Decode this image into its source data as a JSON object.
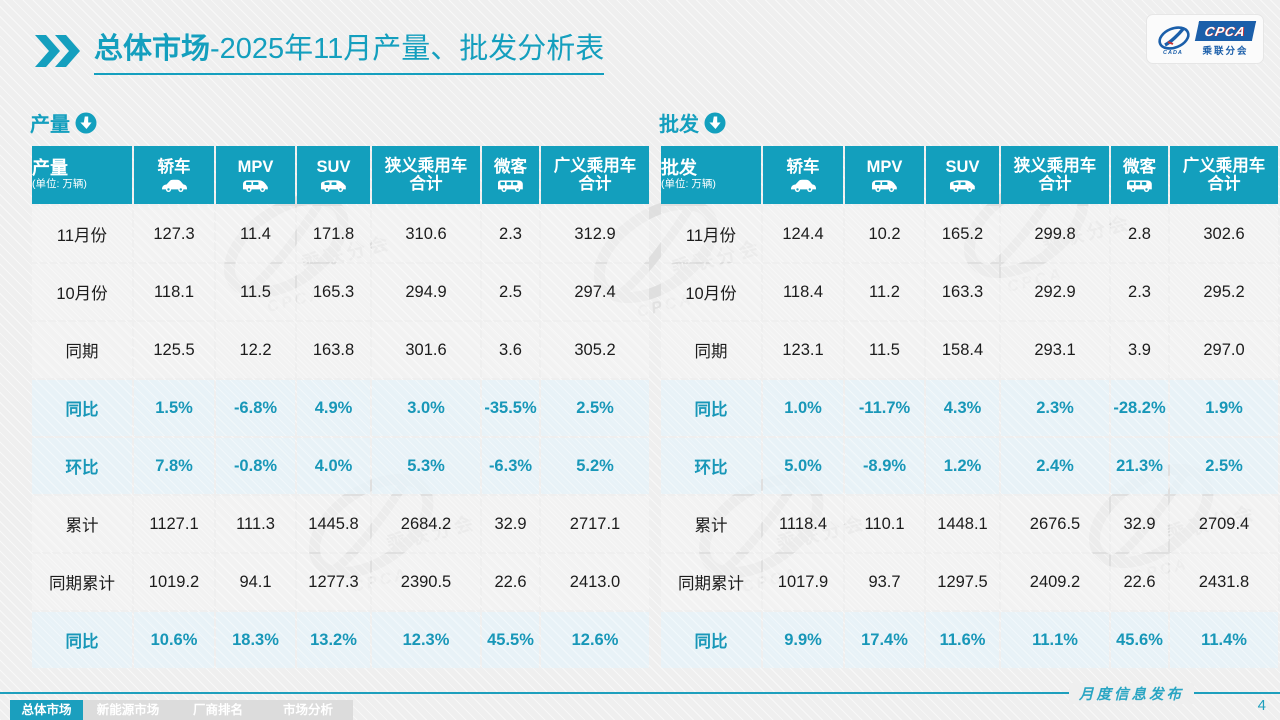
{
  "title": {
    "main": "总体市场",
    "rest": "-2025年11月产量、批发分析表"
  },
  "logo": {
    "acronym": "CPCA",
    "subtitle": "乘联分会"
  },
  "colors": {
    "accent": "#139FBD",
    "accent_text": "#1897B8",
    "highlight_row_bg": "#E9F3F7",
    "footer_tab_active": "#1B9FBE"
  },
  "tables": [
    {
      "section_label": "产量",
      "header": {
        "label": "产量",
        "unit": "(单位: 万辆)"
      },
      "columns": [
        {
          "label": "轿车",
          "icon": "sedan-icon"
        },
        {
          "label": "MPV",
          "icon": "mpv-icon"
        },
        {
          "label": "SUV",
          "icon": "suv-icon"
        },
        {
          "label": "狭义乘用车\n合计",
          "icon": null
        },
        {
          "label": "微客",
          "icon": "minibus-icon"
        },
        {
          "label": "广义乘用车\n合计",
          "icon": null
        }
      ],
      "rows": [
        {
          "label": "11月份",
          "type": "data",
          "values": [
            "127.3",
            "11.4",
            "171.8",
            "310.6",
            "2.3",
            "312.9"
          ]
        },
        {
          "label": "10月份",
          "type": "data",
          "values": [
            "118.1",
            "11.5",
            "165.3",
            "294.9",
            "2.5",
            "297.4"
          ]
        },
        {
          "label": "同期",
          "type": "data",
          "values": [
            "125.5",
            "12.2",
            "163.8",
            "301.6",
            "3.6",
            "305.2"
          ]
        },
        {
          "label": "同比",
          "type": "pct",
          "values": [
            "1.5%",
            "-6.8%",
            "4.9%",
            "3.0%",
            "-35.5%",
            "2.5%"
          ]
        },
        {
          "label": "环比",
          "type": "pct",
          "values": [
            "7.8%",
            "-0.8%",
            "4.0%",
            "5.3%",
            "-6.3%",
            "5.2%"
          ]
        },
        {
          "label": "累计",
          "type": "data",
          "values": [
            "1127.1",
            "111.3",
            "1445.8",
            "2684.2",
            "32.9",
            "2717.1"
          ]
        },
        {
          "label": "同期累计",
          "type": "data",
          "values": [
            "1019.2",
            "94.1",
            "1277.3",
            "2390.5",
            "22.6",
            "2413.0"
          ]
        },
        {
          "label": "同比",
          "type": "pct",
          "values": [
            "10.6%",
            "18.3%",
            "13.2%",
            "12.3%",
            "45.5%",
            "12.6%"
          ]
        }
      ]
    },
    {
      "section_label": "批发",
      "header": {
        "label": "批发",
        "unit": "(单位: 万辆)"
      },
      "columns": [
        {
          "label": "轿车",
          "icon": "sedan-icon"
        },
        {
          "label": "MPV",
          "icon": "mpv-icon"
        },
        {
          "label": "SUV",
          "icon": "suv-icon"
        },
        {
          "label": "狭义乘用车\n合计",
          "icon": null
        },
        {
          "label": "微客",
          "icon": "minibus-icon"
        },
        {
          "label": "广义乘用车\n合计",
          "icon": null
        }
      ],
      "rows": [
        {
          "label": "11月份",
          "type": "data",
          "values": [
            "124.4",
            "10.2",
            "165.2",
            "299.8",
            "2.8",
            "302.6"
          ]
        },
        {
          "label": "10月份",
          "type": "data",
          "values": [
            "118.4",
            "11.2",
            "163.3",
            "292.9",
            "2.3",
            "295.2"
          ]
        },
        {
          "label": "同期",
          "type": "data",
          "values": [
            "123.1",
            "11.5",
            "158.4",
            "293.1",
            "3.9",
            "297.0"
          ]
        },
        {
          "label": "同比",
          "type": "pct",
          "values": [
            "1.0%",
            "-11.7%",
            "4.3%",
            "2.3%",
            "-28.2%",
            "1.9%"
          ]
        },
        {
          "label": "环比",
          "type": "pct",
          "values": [
            "5.0%",
            "-8.9%",
            "1.2%",
            "2.4%",
            "21.3%",
            "2.5%"
          ]
        },
        {
          "label": "累计",
          "type": "data",
          "values": [
            "1118.4",
            "110.1",
            "1448.1",
            "2676.5",
            "32.9",
            "2709.4"
          ]
        },
        {
          "label": "同期累计",
          "type": "data",
          "values": [
            "1017.9",
            "93.7",
            "1297.5",
            "2409.2",
            "22.6",
            "2431.8"
          ]
        },
        {
          "label": "同比",
          "type": "pct",
          "values": [
            "9.9%",
            "17.4%",
            "11.6%",
            "11.1%",
            "45.6%",
            "11.4%"
          ]
        }
      ]
    }
  ],
  "footer": {
    "tabs": [
      {
        "label": "总体市场",
        "active": true
      },
      {
        "label": "新能源市场",
        "active": false
      },
      {
        "label": "厂商排名",
        "active": false
      },
      {
        "label": "市场分析",
        "active": false
      }
    ],
    "release_label": "月度信息发布",
    "page_number": "4"
  }
}
